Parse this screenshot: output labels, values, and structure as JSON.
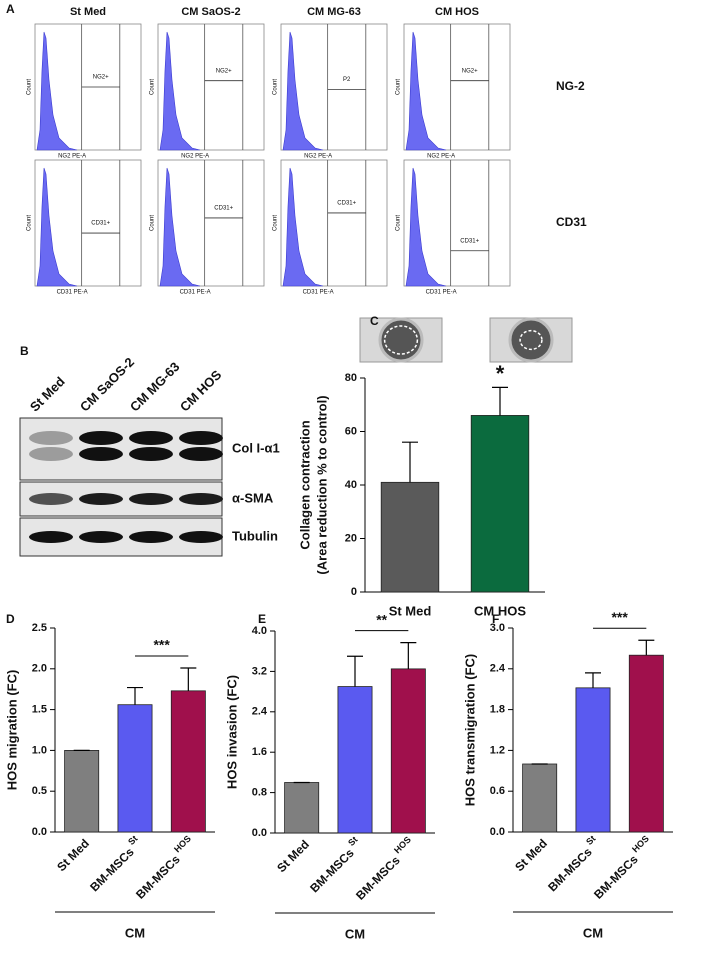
{
  "panel_a": {
    "label": "A",
    "columns": [
      "St Med",
      "CM SaOS-2",
      "CM MG-63",
      "CM HOS"
    ],
    "rows": [
      {
        "name": "NG-2",
        "y_label": "Count",
        "x_label": "NG2 PE-A",
        "gates": [
          "NG2+",
          "NG2+",
          "P2",
          "NG2+"
        ]
      },
      {
        "name": "CD31",
        "y_label": "Count",
        "x_label": "CD31 PE-A",
        "gates": [
          "CD31+",
          "CD31+",
          "CD31+",
          "CD31+"
        ]
      }
    ]
  },
  "panel_b": {
    "label": "B",
    "lanes": [
      "St Med",
      "CM SaOS-2",
      "CM MG-63",
      "CM HOS"
    ],
    "bands": [
      "Col I-α1",
      "α-SMA",
      "Tubulin"
    ]
  },
  "chart_data": [
    {
      "type": "bar",
      "label": "C",
      "ylabel": [
        "Collagen contraction",
        "(Area reduction % to control)"
      ],
      "categories": [
        "St Med",
        "CM HOS"
      ],
      "values": [
        41,
        66
      ],
      "errors": [
        15,
        10.5
      ],
      "colors": [
        "#5a5a5a",
        "#0b6b3e"
      ],
      "ylim": [
        0,
        80
      ],
      "yticks": [
        0,
        20,
        40,
        60,
        80
      ],
      "significance": "*"
    },
    {
      "type": "bar",
      "label": "D",
      "ylabel": [
        "HOS migration (FC)"
      ],
      "categories": [
        "St Med",
        "BM-MSCs",
        "BM-MSCs"
      ],
      "category_superscripts": [
        null,
        "St",
        "HOS"
      ],
      "group_label": "CM",
      "values": [
        1,
        1.56,
        1.73
      ],
      "errors": [
        0,
        0.21,
        0.28
      ],
      "colors": [
        "#7f7f7f",
        "#5a5af0",
        "#a0104c"
      ],
      "ylim": [
        0,
        2.5
      ],
      "yticks": [
        {
          "value": 0,
          "label": "0.0"
        },
        {
          "value": 0.5,
          "label": "0.5"
        },
        {
          "value": 1,
          "label": "1.0"
        },
        {
          "value": 1.5,
          "label": "1.5"
        },
        {
          "value": 2,
          "label": "2.0"
        },
        {
          "value": 2.5,
          "label": "2.5"
        }
      ],
      "significance": "***"
    },
    {
      "type": "bar",
      "label": "E",
      "ylabel": [
        "HOS invasion (FC)"
      ],
      "categories": [
        "St Med",
        "BM-MSCs",
        "BM-MSCs"
      ],
      "category_superscripts": [
        null,
        "St",
        "HOS"
      ],
      "group_label": "CM",
      "values": [
        1,
        2.9,
        3.25
      ],
      "errors": [
        0,
        0.6,
        0.52
      ],
      "colors": [
        "#7f7f7f",
        "#5a5af0",
        "#a0104c"
      ],
      "ylim": [
        0,
        4
      ],
      "yticks": [
        {
          "value": 0,
          "label": "0.0"
        },
        {
          "value": 0.8,
          "label": "0.8"
        },
        {
          "value": 1.6,
          "label": "1.6"
        },
        {
          "value": 2.4,
          "label": "2.4"
        },
        {
          "value": 3.2,
          "label": "3.2"
        },
        {
          "value": 4,
          "label": "4.0"
        }
      ],
      "significance": "**"
    },
    {
      "type": "bar",
      "label": "F",
      "ylabel": [
        "HOS transmigration (FC)"
      ],
      "categories": [
        "St Med",
        "BM-MSCs",
        "BM-MSCs"
      ],
      "category_superscripts": [
        null,
        "St",
        "HOS"
      ],
      "group_label": "CM",
      "values": [
        1,
        2.12,
        2.6
      ],
      "errors": [
        0,
        0.22,
        0.22
      ],
      "colors": [
        "#7f7f7f",
        "#5a5af0",
        "#a0104c"
      ],
      "ylim": [
        0,
        3
      ],
      "yticks": [
        {
          "value": 0,
          "label": "0.0"
        },
        {
          "value": 0.6,
          "label": "0.6"
        },
        {
          "value": 1.2,
          "label": "1.2"
        },
        {
          "value": 1.8,
          "label": "1.8"
        },
        {
          "value": 2.4,
          "label": "2.4"
        },
        {
          "value": 3,
          "label": "3.0"
        }
      ],
      "significance": "***"
    }
  ]
}
